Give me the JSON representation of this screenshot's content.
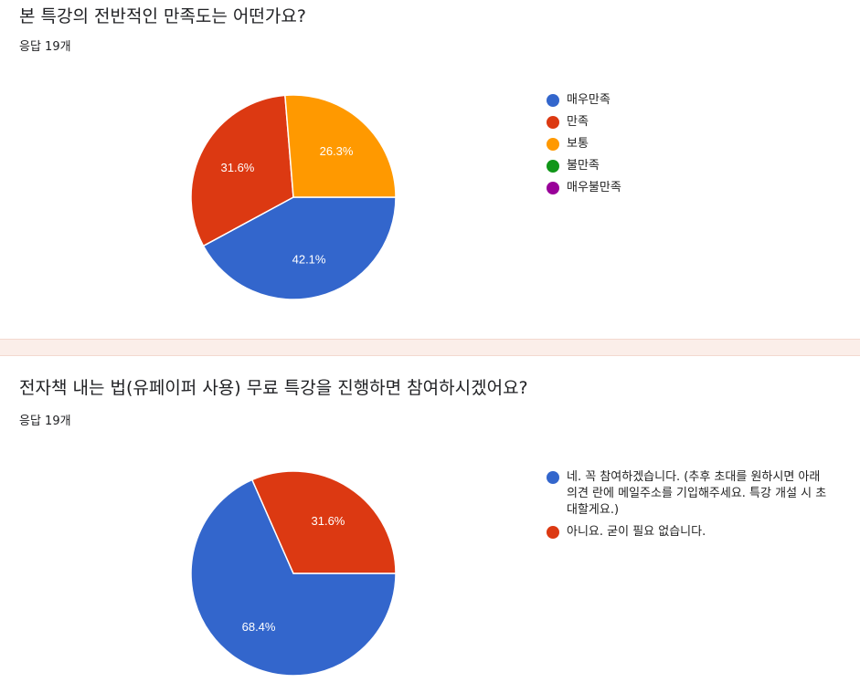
{
  "questions": [
    {
      "title": "본 특강의 전반적인 만족도는 어떤가요?",
      "responses": "응답 19개"
    },
    {
      "title": "전자책 내는 법(유페이퍼 사용) 무료 특강을 진행하면 참여하시겠어요?",
      "responses": "응답 19개"
    }
  ],
  "chart_data": [
    {
      "type": "pie",
      "title": "본 특강의 전반적인 만족도는 어떤가요?",
      "legend_position": "right",
      "slices": [
        {
          "label": "매우만족",
          "value": 42.1,
          "display": "42.1%",
          "color": "#3366cc"
        },
        {
          "label": "만족",
          "value": 31.6,
          "display": "31.6%",
          "color": "#dc3912"
        },
        {
          "label": "보통",
          "value": 26.3,
          "display": "26.3%",
          "color": "#ff9900"
        },
        {
          "label": "불만족",
          "value": 0,
          "display": "",
          "color": "#109618"
        },
        {
          "label": "매우불만족",
          "value": 0,
          "display": "",
          "color": "#990099"
        }
      ]
    },
    {
      "type": "pie",
      "title": "전자책 내는 법(유페이퍼 사용) 무료 특강을 진행하면 참여하시겠어요?",
      "legend_position": "right",
      "slices": [
        {
          "label": "네. 꼭 참여하겠습니다. (추후 초대를 원하시면 아래 의견 란에 메일주소를 기입해주세요. 특강 개설 시 초대할게요.)",
          "value": 68.4,
          "display": "68.4%",
          "color": "#3366cc"
        },
        {
          "label": "아니요. 굳이 필요 없습니다.",
          "value": 31.6,
          "display": "31.6%",
          "color": "#dc3912"
        }
      ]
    }
  ]
}
